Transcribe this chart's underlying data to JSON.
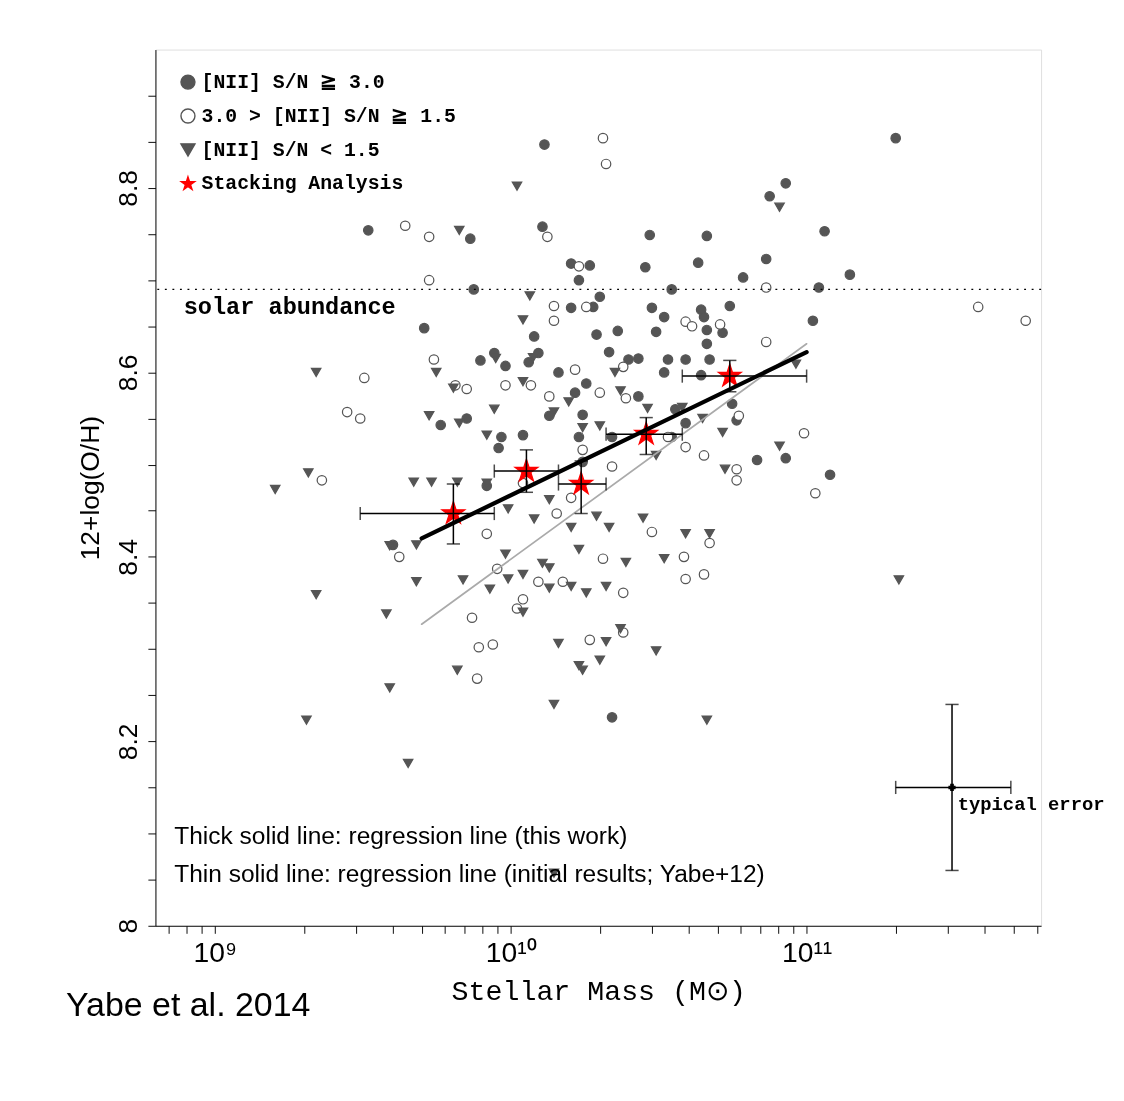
{
  "chart_data": {
    "type": "scatter",
    "xlabel": "Stellar Mass (M⊙)",
    "ylabel": "12+log(O/H)",
    "log": "x",
    "grid": false,
    "legend": "top left",
    "xlim": [
      630000000.0,
      620000000000.0
    ],
    "ylim": [
      8.0,
      8.95
    ],
    "xticks": [
      {
        "value": 700000000.0,
        "label": null
      },
      {
        "value": 800000000.0,
        "label": null
      },
      {
        "value": 900000000.0,
        "label": null
      },
      {
        "value": 1000000000.0,
        "label": "10⁹"
      },
      {
        "value": 2000000000.0,
        "label": null
      },
      {
        "value": 3000000000.0,
        "label": null
      },
      {
        "value": 4000000000.0,
        "label": null
      },
      {
        "value": 5000000000.0,
        "label": null
      },
      {
        "value": 6000000000.0,
        "label": null
      },
      {
        "value": 7000000000.0,
        "label": null
      },
      {
        "value": 8000000000.0,
        "label": null
      },
      {
        "value": 9000000000.0,
        "label": null
      },
      {
        "value": 10000000000.0,
        "label": "10¹⁰"
      },
      {
        "value": 20000000000.0,
        "label": null
      },
      {
        "value": 30000000000.0,
        "label": null
      },
      {
        "value": 40000000000.0,
        "label": null
      },
      {
        "value": 50000000000.0,
        "label": null
      },
      {
        "value": 60000000000.0,
        "label": null
      },
      {
        "value": 70000000000.0,
        "label": null
      },
      {
        "value": 80000000000.0,
        "label": null
      },
      {
        "value": 90000000000.0,
        "label": null
      },
      {
        "value": 100000000000.0,
        "label": "10¹¹"
      },
      {
        "value": 200000000000.0,
        "label": null
      },
      {
        "value": 300000000000.0,
        "label": null
      },
      {
        "value": 400000000000.0,
        "label": null
      },
      {
        "value": 500000000000.0,
        "label": null
      },
      {
        "value": 600000000000.0,
        "label": null
      }
    ],
    "yticks": [
      8,
      {
        "value": 8.05,
        "label": null
      },
      {
        "value": 8.1,
        "label": null
      },
      {
        "value": 8.15,
        "label": null
      },
      8.2,
      {
        "value": 8.25,
        "label": null
      },
      {
        "value": 8.3,
        "label": null
      },
      {
        "value": 8.35,
        "label": null
      },
      8.4,
      {
        "value": 8.45,
        "label": null
      },
      {
        "value": 8.5,
        "label": null
      },
      {
        "value": 8.55,
        "label": null
      },
      8.6,
      {
        "value": 8.65,
        "label": null
      },
      {
        "value": 8.7,
        "label": null
      },
      {
        "value": 8.75,
        "label": null
      },
      8.8,
      {
        "value": 8.85,
        "label": null
      },
      {
        "value": 8.9,
        "label": null
      }
    ],
    "ref_lines": [
      {
        "axis": "y",
        "value": 8.69,
        "label": "solar abundance",
        "line_style": "dotted",
        "color": "#000000"
      }
    ],
    "annotations": [
      "Thick solid line: regression line (this work)",
      "Thin solid line: regression line (initial results; Yabe+12)",
      "Yabe et al. 2014"
    ],
    "series": [
      {
        "name": "[NII] S/N ≧ 3.0",
        "marker": "circle",
        "color": "#555555",
        "x": [
          3300000000.0,
          7300000000.0,
          13000000000.0,
          12800000000.0,
          16000000000.0,
          18500000000.0,
          17000000000.0,
          20000000000.0,
          28500000000.0,
          29500000000.0,
          46000000000.0,
          43000000000.0,
          61000000000.0,
          73000000000.0,
          75000000000.0,
          85000000000.0,
          115000000000.0,
          140000000000.0,
          200000000000.0,
          110000000000.0,
          7500000000.0,
          35000000000.0,
          5100000000.0,
          9600000000.0,
          12000000000.0,
          16000000000.0,
          19000000000.0,
          19500000000.0,
          23000000000.0,
          30000000000.0,
          33000000000.0,
          45000000000.0,
          55000000000.0,
          44000000000.0,
          52000000000.0,
          31000000000.0,
          105000000000.0,
          46000000000.0,
          46000000000.0,
          39000000000.0,
          34000000000.0,
          47000000000.0,
          25000000000.0,
          21500000000.0,
          12400000000.0,
          11500000000.0,
          8800000000.0,
          7100000000.0,
          5800000000.0,
          7900000000.0,
          9300000000.0,
          9100000000.0,
          14500000000.0,
          16500000000.0,
          18000000000.0,
          17500000000.0,
          27000000000.0,
          33000000000.0,
          44000000000.0,
          58000000000.0,
          56000000000.0,
          85000000000.0,
          120000000000.0,
          17000000000.0,
          17500000000.0,
          22000000000.0,
          36000000000.0,
          39000000000.0,
          35000000000.0,
          27000000000.0,
          8300000000.0,
          4000000000.0,
          22000000000.0,
          68000000000.0,
          11000000000.0,
          13500000000.0
        ],
        "values": [
          8.754,
          8.745,
          8.847,
          8.758,
          8.718,
          8.716,
          8.7,
          8.682,
          8.714,
          8.749,
          8.748,
          8.719,
          8.703,
          8.723,
          8.791,
          8.805,
          8.753,
          8.706,
          8.854,
          8.692,
          8.69,
          8.69,
          8.648,
          8.607,
          8.639,
          8.67,
          8.671,
          8.641,
          8.645,
          8.67,
          8.66,
          8.66,
          8.672,
          8.668,
          8.643,
          8.644,
          8.656,
          8.646,
          8.631,
          8.614,
          8.614,
          8.614,
          8.614,
          8.622,
          8.621,
          8.611,
          8.621,
          8.55,
          8.543,
          8.613,
          8.53,
          8.518,
          8.6,
          8.578,
          8.588,
          8.554,
          8.615,
          8.6,
          8.597,
          8.548,
          8.566,
          8.507,
          8.489,
          8.53,
          8.503,
          8.53,
          8.56,
          8.545,
          8.53,
          8.574,
          8.477,
          8.413,
          8.226,
          8.505,
          8.532,
          8.553
        ]
      },
      {
        "name": "3.0 > [NII] S/N ≧ 1.5",
        "marker": "circle",
        "color": "#555555",
        "x": [
          4400000000.0,
          5300000000.0,
          5300000000.0,
          20500000000.0,
          21000000000.0,
          13300000000.0,
          17000000000.0,
          18000000000.0,
          73000000000.0,
          380000000000.0,
          550000000000.0,
          3200000000.0,
          2800000000.0,
          3100000000.0,
          5500000000.0,
          6500000000.0,
          7100000000.0,
          14000000000.0,
          14000000000.0,
          39000000000.0,
          41000000000.0,
          51000000000.0,
          73000000000.0,
          24000000000.0,
          13500000000.0,
          11700000000.0,
          9600000000.0,
          20000000000.0,
          24500000000.0,
          16500000000.0,
          59000000000.0,
          98000000000.0,
          107000000000.0,
          58000000000.0,
          58000000000.0,
          45000000000.0,
          34000000000.0,
          39000000000.0,
          2300000000.0,
          4200000000.0,
          8300000000.0,
          9000000000.0,
          11000000000.0,
          17500000000.0,
          22000000000.0,
          20500000000.0,
          30000000000.0,
          38500000000.0,
          39000000000.0,
          45000000000.0,
          47000000000.0,
          7400000000.0,
          7800000000.0,
          8700000000.0,
          7700000000.0,
          10500000000.0,
          11000000000.0,
          12400000000.0,
          15000000000.0,
          18500000000.0,
          24000000000.0,
          24000000000.0,
          14300000000.0,
          16000000000.0
        ],
        "values": [
          8.759,
          8.747,
          8.7,
          8.854,
          8.826,
          8.747,
          8.715,
          8.671,
          8.692,
          8.671,
          8.656,
          8.594,
          8.557,
          8.55,
          8.614,
          8.586,
          8.582,
          8.672,
          8.656,
          8.655,
          8.65,
          8.652,
          8.633,
          8.606,
          8.574,
          8.586,
          8.586,
          8.578,
          8.572,
          8.603,
          8.553,
          8.534,
          8.469,
          8.495,
          8.483,
          8.51,
          8.53,
          8.519,
          8.483,
          8.4,
          8.425,
          8.387,
          8.48,
          8.516,
          8.498,
          8.398,
          8.427,
          8.4,
          8.376,
          8.381,
          8.415,
          8.334,
          8.302,
          8.305,
          8.268,
          8.344,
          8.354,
          8.373,
          8.373,
          8.31,
          8.318,
          8.361,
          8.447,
          8.464
        ]
      },
      {
        "name": "[NII] S/N < 1.5",
        "marker": "triangle",
        "color": "#555555",
        "x": [
          1600000000.0,
          2070000000.0,
          2200000000.0,
          2200000000.0,
          2040000000.0,
          3800000000.0,
          3900000000.0,
          4500000000.0,
          3900000000.0,
          4800000000.0,
          4800000000.0,
          6700000000.0,
          10500000000.0,
          6600000000.0,
          4700000000.0,
          5400000000.0,
          6600000000.0,
          5300000000.0,
          5600000000.0,
          6400000000.0,
          6700000000.0,
          8300000000.0,
          11600000000.0,
          11000000000.0,
          8900000000.0,
          11900000000.0,
          11000000000.0,
          8800000000.0,
          8300000000.0,
          14000000000.0,
          15700000000.0,
          17500000000.0,
          20000000000.0,
          22500000000.0,
          23500000000.0,
          29000000000.0,
          31000000000.0,
          38000000000.0,
          44500000000.0,
          52000000000.0,
          53000000000.0,
          81000000000.0,
          92000000000.0,
          81000000000.0,
          9800000000.0,
          12000000000.0,
          13500000000.0,
          16000000000.0,
          19500000000.0,
          9600000000.0,
          12800000000.0,
          17000000000.0,
          21500000000.0,
          24500000000.0,
          13500000000.0,
          6900000000.0,
          8500000000.0,
          9800000000.0,
          11000000000.0,
          13500000000.0,
          16000000000.0,
          18000000000.0,
          21000000000.0,
          33000000000.0,
          28000000000.0,
          39000000000.0,
          47000000000.0,
          11000000000.0,
          14500000000.0,
          17500000000.0,
          20000000000.0,
          31000000000.0,
          17000000000.0,
          14000000000.0,
          46000000000.0,
          14000000000.0,
          205000000000.0,
          21000000000.0,
          23500000000.0
        ],
        "values": [
          8.473,
          8.491,
          8.6,
          8.359,
          8.223,
          8.338,
          8.258,
          8.176,
          8.412,
          8.413,
          8.373,
          8.754,
          8.802,
          8.277,
          8.481,
          8.481,
          8.481,
          8.553,
          8.6,
          8.583,
          8.545,
          8.48,
          8.683,
          8.657,
          8.615,
          8.616,
          8.59,
          8.56,
          8.532,
          8.557,
          8.568,
          8.54,
          8.542,
          8.6,
          8.58,
          8.561,
          8.51,
          8.562,
          8.55,
          8.535,
          8.495,
          8.52,
          8.609,
          8.779,
          8.452,
          8.441,
          8.462,
          8.432,
          8.444,
          8.403,
          8.393,
          8.408,
          8.432,
          8.394,
          8.388,
          8.375,
          8.365,
          8.376,
          8.381,
          8.366,
          8.368,
          8.361,
          8.368,
          8.398,
          8.442,
          8.425,
          8.425,
          8.34,
          8.306,
          8.277,
          8.288,
          8.298,
          8.282,
          8.24,
          8.223,
          8.057,
          8.375,
          8.308,
          8.322
        ]
      },
      {
        "type": "line",
        "color": "#aaaaaa",
        "x": [
          5000000000.0,
          100000000000.0
        ],
        "values": [
          8.327,
          8.631
        ]
      },
      {
        "type": "line",
        "color": "#000000",
        "x": [
          5000000000.0,
          100000000000.0
        ],
        "values": [
          8.42,
          8.622
        ]
      },
      {
        "name": "Stacking Analysis",
        "marker": "star",
        "color": "#ff0000",
        "x": [
          6400000000.0,
          11300000000.0,
          17300000000.0,
          28700000000.0,
          55000000000.0
        ],
        "values": [
          8.447,
          8.493,
          8.479,
          8.533,
          8.596
        ],
        "errors": [
          [
            8.414,
            8.479
          ],
          [
            8.47,
            8.516
          ],
          [
            8.447,
            8.504
          ],
          [
            8.511,
            8.551
          ],
          [
            8.579,
            8.613
          ]
        ],
        "xerrors": [
          [
            3100000000.0,
            8800000000.0
          ],
          [
            8800000000.0,
            14500000000.0
          ],
          [
            14500000000.0,
            21000000000.0
          ],
          [
            21000000000.0,
            38000000000.0
          ],
          [
            38000000000.0,
            100000000000.0
          ]
        ]
      },
      {
        "name": "typical error",
        "marker": "cross",
        "color": "#000000",
        "x": [
          310000000000.0
        ],
        "values": [
          8.15
        ],
        "errors": [
          0.09
        ],
        "xerrors": [
          [
            200000000000.0,
            490000000000.0
          ]
        ]
      }
    ]
  }
}
